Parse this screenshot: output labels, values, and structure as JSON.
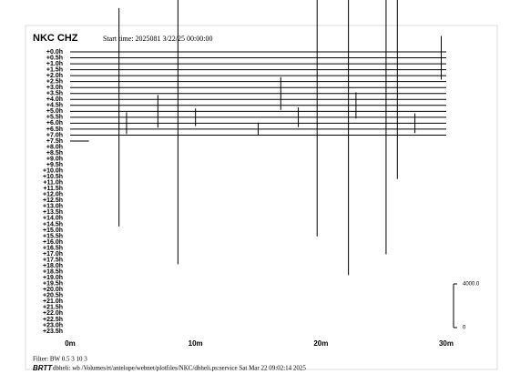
{
  "header": {
    "station": "NKC CHZ",
    "start_time": "Start time: 2025081  3/22/25 00:00:00"
  },
  "chart_data": {
    "type": "helicorder",
    "row_labels": [
      "+0.0h",
      "+0.5h",
      "+1.0h",
      "+1.5h",
      "+2.0h",
      "+2.5h",
      "+3.0h",
      "+3.5h",
      "+4.0h",
      "+4.5h",
      "+5.0h",
      "+5.5h",
      "+6.0h",
      "+6.5h",
      "+7.0h",
      "+7.5h",
      "+8.0h",
      "+8.5h",
      "+9.0h",
      "+9.5h",
      "+10.0h",
      "+10.5h",
      "+11.0h",
      "+11.5h",
      "+12.0h",
      "+12.5h",
      "+13.0h",
      "+13.5h",
      "+14.0h",
      "+14.5h",
      "+15.0h",
      "+15.5h",
      "+16.0h",
      "+16.5h",
      "+17.0h",
      "+17.5h",
      "+18.0h",
      "+18.5h",
      "+19.0h",
      "+19.5h",
      "+20.0h",
      "+20.5h",
      "+21.0h",
      "+21.5h",
      "+22.0h",
      "+22.5h",
      "+23.0h",
      "+23.5h"
    ],
    "xlim": [
      0,
      30
    ],
    "xticks": [
      {
        "value": 0,
        "label": "0m"
      },
      {
        "value": 10,
        "label": "10m"
      },
      {
        "value": 20,
        "label": "20m"
      },
      {
        "value": 30,
        "label": "30m"
      }
    ],
    "trace_end_minutes": [
      30,
      30,
      30,
      30,
      30,
      30,
      30,
      30,
      30,
      30,
      30,
      30,
      30,
      30,
      30,
      1.5
    ],
    "events": [
      {
        "row": 11,
        "minute": 3.9,
        "amplitude": 10000
      },
      {
        "row": 10,
        "minute": 8.6,
        "amplitude": 14000
      },
      {
        "row": 9,
        "minute": 19.7,
        "amplitude": 12000
      },
      {
        "row": 10,
        "minute": 22.2,
        "amplitude": 15000
      },
      {
        "row": 12,
        "minute": 25.2,
        "amplitude": 12000
      },
      {
        "row": 3,
        "minute": 26.1,
        "amplitude": 10000
      },
      {
        "row": 1,
        "minute": 29.6,
        "amplitude": 2000
      },
      {
        "row": 10,
        "minute": 7,
        "amplitude": 1500
      },
      {
        "row": 7,
        "minute": 16.8,
        "amplitude": 1500
      },
      {
        "row": 9,
        "minute": 22.8,
        "amplitude": 1200
      },
      {
        "row": 11,
        "minute": 10,
        "amplitude": 800
      },
      {
        "row": 12,
        "minute": 4.5,
        "amplitude": 1000
      },
      {
        "row": 13,
        "minute": 15,
        "amplitude": 600
      },
      {
        "row": 11,
        "minute": 18.2,
        "amplitude": 900
      },
      {
        "row": 12,
        "minute": 27.5,
        "amplitude": 900
      }
    ],
    "scale": {
      "value": 4000,
      "label": "4000.0",
      "zero": 0
    },
    "color": "#000000"
  },
  "footer": {
    "filter": "Filter: BW 0.5 3 10 3",
    "program": "BRTT",
    "info": "dbheli: wb /Volumes/rt/antelope/webnet/plotfiles/NKC/dbheli.ps:service Sat Mar 22 09:02:14 2025"
  }
}
